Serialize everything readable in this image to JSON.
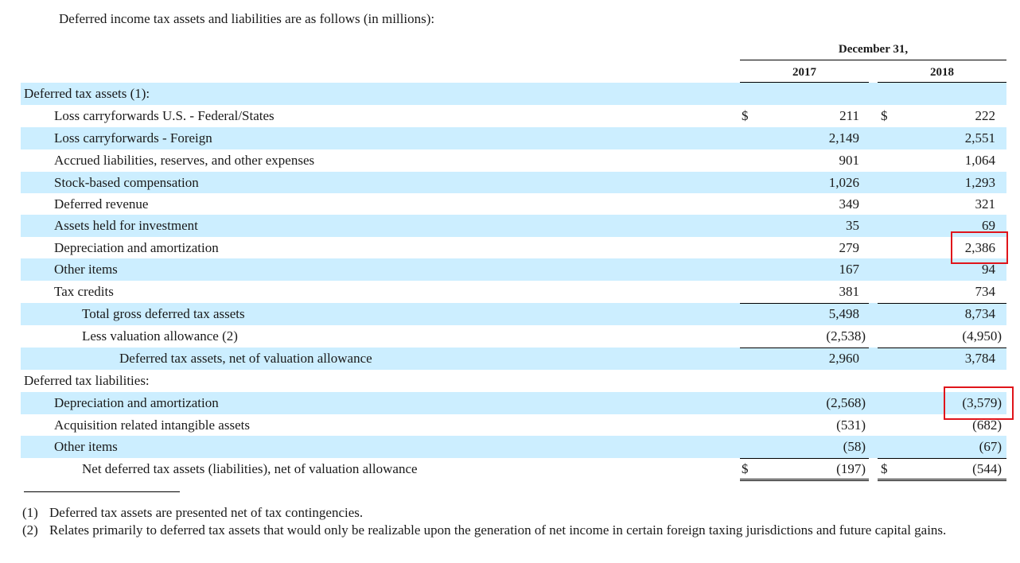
{
  "intro": "Deferred income tax assets and liabilities are as follows (in millions):",
  "header": {
    "period": "December 31,",
    "years": [
      "2017",
      "2018"
    ]
  },
  "currency_symbol": "$",
  "rows": [
    {
      "label": "Deferred tax assets (1):",
      "indent": 0,
      "shade": true,
      "section": true
    },
    {
      "label": "Loss carryforwards U.S. - Federal/States",
      "indent": 1,
      "shade": false,
      "v2017": "211",
      "v2018": "222",
      "dollar": true
    },
    {
      "label": "Loss carryforwards - Foreign",
      "indent": 1,
      "shade": true,
      "v2017": "2,149",
      "v2018": "2,551"
    },
    {
      "label": "Accrued liabilities, reserves, and other expenses",
      "indent": 1,
      "shade": false,
      "v2017": "901",
      "v2018": "1,064"
    },
    {
      "label": "Stock-based compensation",
      "indent": 1,
      "shade": true,
      "v2017": "1,026",
      "v2018": "1,293"
    },
    {
      "label": "Deferred revenue",
      "indent": 1,
      "shade": false,
      "v2017": "349",
      "v2018": "321"
    },
    {
      "label": "Assets held for investment",
      "indent": 1,
      "shade": true,
      "v2017": "35",
      "v2018": "69"
    },
    {
      "label": "Depreciation and amortization",
      "indent": 1,
      "shade": false,
      "v2017": "279",
      "v2018": "2,386",
      "highlight2018": true
    },
    {
      "label": "Other items",
      "indent": 1,
      "shade": true,
      "v2017": "167",
      "v2018": "94"
    },
    {
      "label": "Tax credits",
      "indent": 1,
      "shade": false,
      "v2017": "381",
      "v2018": "734",
      "underline": true
    },
    {
      "label": "Total gross deferred tax assets",
      "indent": 2,
      "shade": true,
      "v2017": "5,498",
      "v2018": "8,734"
    },
    {
      "label": "Less valuation allowance (2)",
      "indent": 2,
      "shade": false,
      "v2017": "(2,538)",
      "v2018": "(4,950)",
      "underline": true
    },
    {
      "label": "Deferred tax assets, net of valuation allowance",
      "indent": 3,
      "shade": true,
      "v2017": "2,960",
      "v2018": "3,784"
    },
    {
      "label": "Deferred tax liabilities:",
      "indent": 0,
      "shade": false,
      "section": true
    },
    {
      "label": "Depreciation and amortization",
      "indent": 1,
      "shade": true,
      "v2017": "(2,568)",
      "v2018": "(3,579)",
      "highlight2018": true
    },
    {
      "label": "Acquisition related intangible assets",
      "indent": 1,
      "shade": false,
      "v2017": "(531)",
      "v2018": "(682)"
    },
    {
      "label": "Other items",
      "indent": 1,
      "shade": true,
      "v2017": "(58)",
      "v2018": "(67)",
      "underline": true
    },
    {
      "label": "Net deferred tax assets (liabilities), net of valuation allowance",
      "indent": 2,
      "shade": false,
      "v2017": "(197)",
      "v2018": "(544)",
      "dollar": true,
      "double": true
    }
  ],
  "footnotes": [
    {
      "marker": "(1)",
      "text": "Deferred tax assets are presented net of tax contingencies."
    },
    {
      "marker": "(2)",
      "text": "Relates primarily to deferred tax assets that would only be realizable upon the generation of net income in certain foreign taxing jurisdictions and future capital gains."
    }
  ],
  "colors": {
    "row_shade": "#cceeff",
    "highlight_box": "#e0151b"
  }
}
